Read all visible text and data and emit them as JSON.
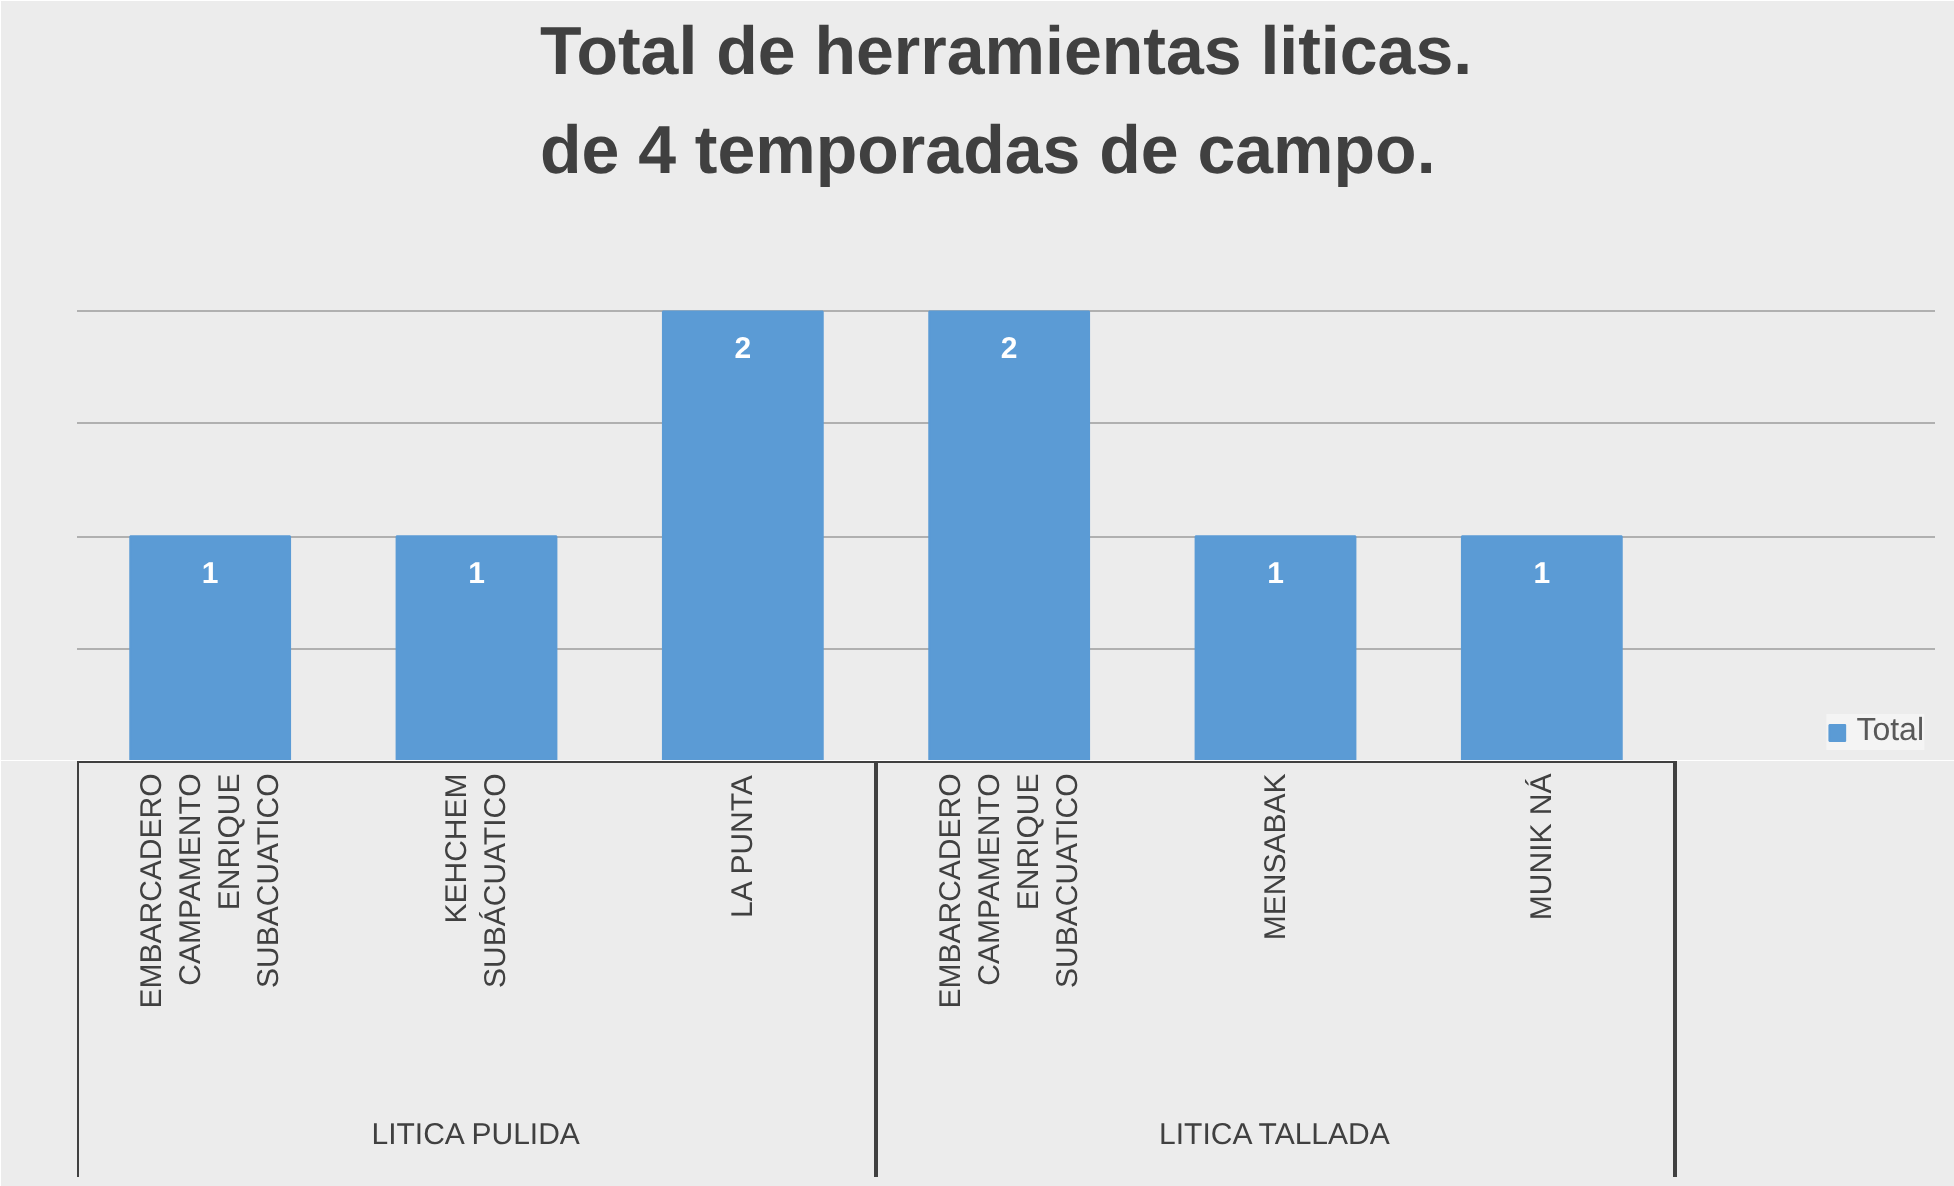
{
  "chart_data": {
    "type": "bar",
    "title": "Total de herramientas liticas.\nde 4 temporadas de campo.",
    "categories": [
      "EMBARCADERO\nCAMPAMENTO\nENRIQUE\nSUBACUATICO",
      "KEHCHEM\nSUBÁCUATICO",
      "LA PUNTA",
      "EMBARCADERO\nCAMPAMENTO\nENRIQUE\nSUBACUATICO",
      "MENSABAK",
      "MUNIK NÁ"
    ],
    "series": [
      {
        "name": "Total",
        "color": "#5b9bd5",
        "values": [
          1,
          1,
          2,
          2,
          1,
          1
        ]
      }
    ],
    "annotations": [
      "LITICA PULIDA",
      "LITICA TALLADA"
    ],
    "ylim": [
      0,
      2.5
    ],
    "yticks": [
      {
        "value": 0,
        "label": null
      },
      {
        "value": 0.5,
        "label": null
      },
      {
        "value": 1,
        "label": null
      },
      {
        "value": 1.5,
        "label": null
      },
      {
        "value": 2,
        "label": null
      },
      {
        "value": 2.5,
        "label": null
      }
    ],
    "tick_labels": "x",
    "grid": "y",
    "data_labels": true,
    "legend": "right"
  }
}
